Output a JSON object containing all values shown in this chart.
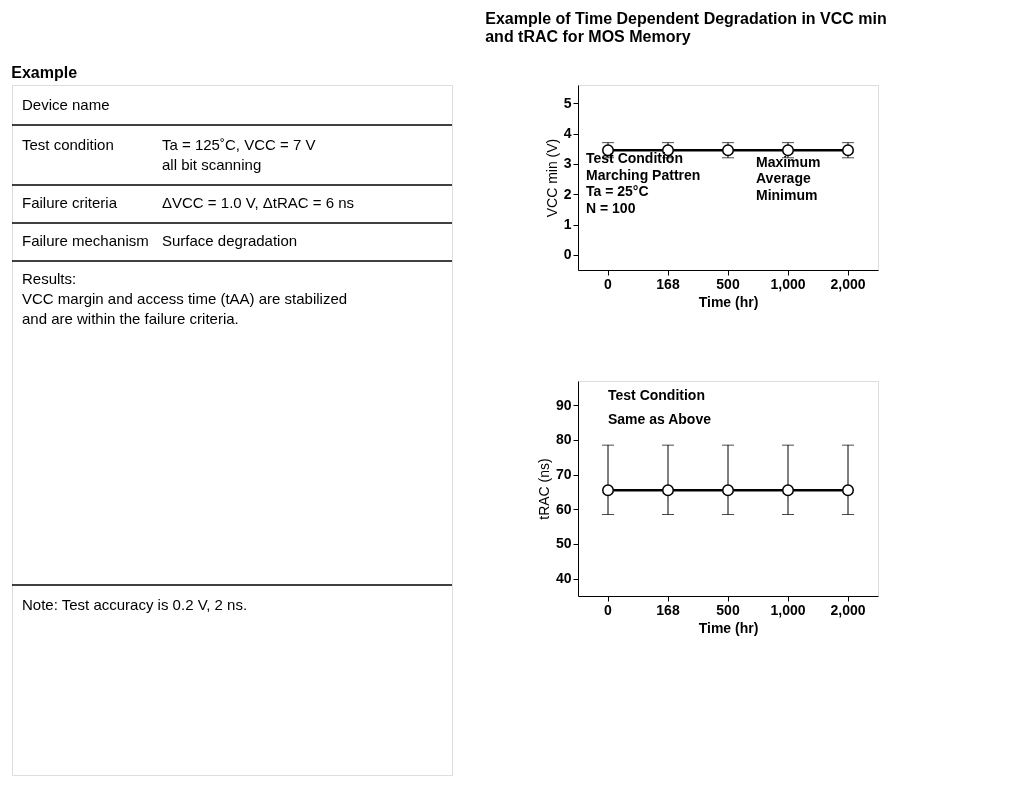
{
  "chart_data": [
    {
      "type": "other",
      "title": "Example",
      "annotations": [
        "Device name",
        "Test condition",
        "Ta = 125˚C, VCC = 7 V",
        "all bit scanning",
        "Failure criteria",
        "ΔVCC = 1.0 V, ΔtRAC = 6 ns",
        "Failure mechanism",
        "Surface degradation",
        "Results:",
        "VCC margin and access time (tAA) are stabilized",
        "and are within the failure criteria.",
        "Note:  Test accuracy is 0.2 V, 2 ns."
      ]
    },
    {
      "type": "line",
      "title": "Example of Time Dependent Degradation in VCC min and tRAC for MOS Memory",
      "categories": [
        "0",
        "168",
        "500",
        "1,000",
        "2,000"
      ],
      "xlabel": "Time (hr)",
      "ylabel": "VCC min (V)",
      "ylim": [
        -0.5,
        5.6
      ],
      "yticks": [
        0,
        1,
        2,
        3,
        4,
        5
      ],
      "grid": false,
      "legend": false,
      "marker": "circle",
      "line_style": "solid",
      "series": [
        {
          "color": "#000000",
          "values": [
            3.45,
            3.45,
            3.45,
            3.45,
            3.45
          ],
          "errors": [
            [
              3.2,
              3.7
            ],
            [
              3.2,
              3.7
            ],
            [
              3.2,
              3.7
            ],
            [
              3.2,
              3.7
            ],
            [
              3.2,
              3.7
            ]
          ]
        }
      ],
      "annotations": [
        "Test Condition",
        "Marching Pattren",
        "Ta = 25°C",
        "N = 100",
        "Maximum",
        "Average",
        "Minimum"
      ]
    },
    {
      "type": "line",
      "categories": [
        "0",
        "168",
        "500",
        "1,000",
        "2,000"
      ],
      "xlabel": "Time (hr)",
      "ylabel": "tRAC (ns)",
      "ylim": [
        35,
        97
      ],
      "yticks": [
        40,
        50,
        60,
        70,
        80,
        90
      ],
      "grid": false,
      "legend": false,
      "marker": "circle",
      "line_style": "solid",
      "series": [
        {
          "color": "#000000",
          "values": [
            65.5,
            65.5,
            65.5,
            65.5,
            65.5
          ],
          "errors": [
            [
              58.5,
              78.5
            ],
            [
              58.5,
              78.5
            ],
            [
              58.5,
              78.5
            ],
            [
              58.5,
              78.5
            ],
            [
              58.5,
              78.5
            ]
          ]
        }
      ],
      "annotations": [
        "Test Condition",
        "Same as Above"
      ]
    }
  ]
}
